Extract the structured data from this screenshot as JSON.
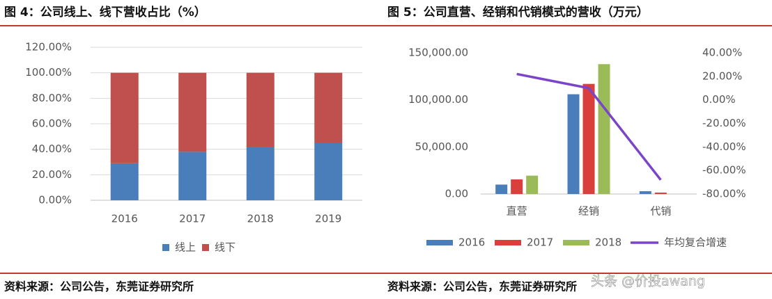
{
  "chart_data": [
    {
      "type": "bar",
      "stacked": true,
      "title": "图 4：公司线上、线下营收占比（%）",
      "categories": [
        "2016",
        "2017",
        "2018",
        "2019"
      ],
      "series": [
        {
          "name": "线上",
          "color": "#4a7ebb",
          "values": [
            29,
            38,
            42,
            45
          ]
        },
        {
          "name": "线下",
          "color": "#c0504d",
          "values": [
            71,
            62,
            58,
            55
          ]
        }
      ],
      "ylim": [
        0,
        120
      ],
      "yticks": [
        {
          "value": 0,
          "label": "0.00%"
        },
        {
          "value": 20,
          "label": "20.00%"
        },
        {
          "value": 40,
          "label": "40.00%"
        },
        {
          "value": 60,
          "label": "60.00%"
        },
        {
          "value": 80,
          "label": "80.00%"
        },
        {
          "value": 100,
          "label": "100.00%"
        },
        {
          "value": 120,
          "label": "120.00%"
        }
      ],
      "grid": true,
      "source": "资料来源：公司公告，东莞证券研究所"
    },
    {
      "type": "bar",
      "title": "图 5：公司直营、经销和代销模式的营收（万元）",
      "categories": [
        "直营",
        "经销",
        "代销"
      ],
      "series": [
        {
          "name": "2016",
          "color": "#4a7ebb",
          "values": [
            10000,
            106000,
            3000
          ]
        },
        {
          "name": "2017",
          "color": "#d9403b",
          "values": [
            15500,
            117000,
            1500
          ]
        },
        {
          "name": "2018",
          "color": "#9bbb59",
          "values": [
            19500,
            138000,
            null
          ]
        },
        {
          "name": "年均复合增速",
          "type": "line",
          "axis": "y2",
          "color": "#7a45c9",
          "values": [
            22,
            10,
            -68
          ]
        }
      ],
      "ylim": [
        0,
        150000
      ],
      "yticks": [
        {
          "value": 0,
          "label": "0.00"
        },
        {
          "value": 50000,
          "label": "50,000.00"
        },
        {
          "value": 100000,
          "label": "100,000.00"
        },
        {
          "value": 150000,
          "label": "150,000.00"
        }
      ],
      "y2lim": [
        -80,
        40
      ],
      "y2ticks": [
        {
          "value": -80,
          "label": "-80.00%"
        },
        {
          "value": -60,
          "label": "-60.00%"
        },
        {
          "value": -40,
          "label": "-40.00%"
        },
        {
          "value": -20,
          "label": "-20.00%"
        },
        {
          "value": 0,
          "label": "0.00%"
        },
        {
          "value": 20,
          "label": "20.00%"
        },
        {
          "value": 40,
          "label": "40.00%"
        }
      ],
      "grid": false,
      "source": "资料来源：公司公告，东莞证券研究所"
    }
  ],
  "watermark": "头条 @价投awang"
}
